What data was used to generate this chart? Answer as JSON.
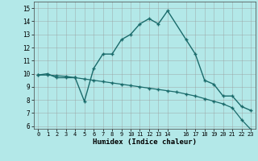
{
  "title": "",
  "xlabel": "Humidex (Indice chaleur)",
  "bg_color": "#b3e8e8",
  "grid_color": "#999999",
  "line_color": "#1a6b6b",
  "curve1_x": [
    0,
    1,
    2,
    3,
    4,
    5,
    6,
    7,
    8,
    9,
    10,
    11,
    12,
    13,
    14,
    16,
    17,
    18,
    19,
    20,
    21,
    22,
    23
  ],
  "curve1_y": [
    9.9,
    10.0,
    9.7,
    9.7,
    9.7,
    7.9,
    10.4,
    11.5,
    11.5,
    12.6,
    13.0,
    13.8,
    14.2,
    13.8,
    14.8,
    12.6,
    11.5,
    9.5,
    9.2,
    8.3,
    8.3,
    7.5,
    7.2
  ],
  "curve2_x": [
    0,
    1,
    2,
    3,
    4,
    5,
    6,
    7,
    8,
    9,
    10,
    11,
    12,
    13,
    14,
    15,
    16,
    17,
    18,
    19,
    20,
    21,
    22,
    23
  ],
  "curve2_y": [
    9.9,
    9.9,
    9.85,
    9.8,
    9.7,
    9.6,
    9.5,
    9.4,
    9.3,
    9.2,
    9.1,
    9.0,
    8.9,
    8.8,
    8.7,
    8.6,
    8.45,
    8.3,
    8.1,
    7.9,
    7.7,
    7.4,
    6.5,
    5.75
  ],
  "xlim": [
    -0.5,
    23.5
  ],
  "ylim": [
    5.8,
    15.5
  ],
  "yticks": [
    6,
    7,
    8,
    9,
    10,
    11,
    12,
    13,
    14,
    15
  ],
  "xticks": [
    0,
    1,
    2,
    3,
    4,
    5,
    6,
    7,
    8,
    9,
    10,
    11,
    12,
    13,
    14,
    16,
    17,
    18,
    19,
    20,
    21,
    22,
    23
  ]
}
